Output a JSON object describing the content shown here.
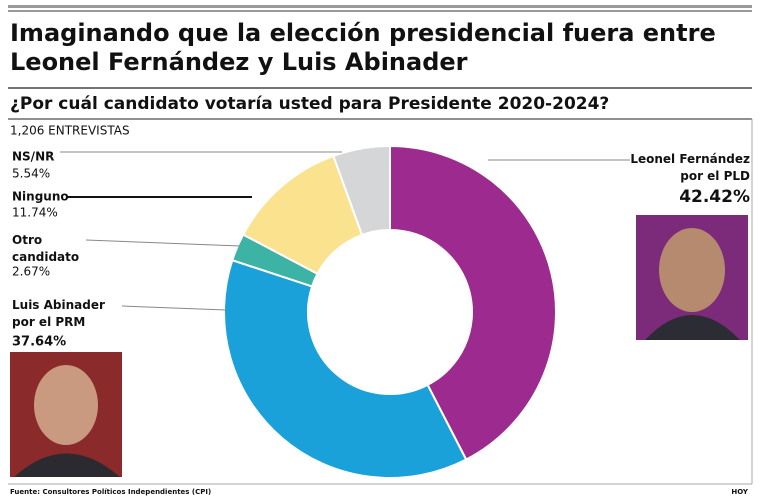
{
  "chart_data": {
    "type": "donut",
    "title": "Imaginando que la elección presidencial fuera entre\nLeonel Fernández y Luis Abinader",
    "subtitle": "¿Por cuál candidato votaría usted para Presidente 2020-2024?",
    "note": "1,206 ENTREVISTAS",
    "categories": [
      "Leonel Fernández\npor el PLD",
      "Luis Abinader\npor el PRM",
      "Otro\ncandidato",
      "Ninguno",
      "NS/NR"
    ],
    "values": [
      42.42,
      37.64,
      2.67,
      11.74,
      5.54
    ],
    "value_labels": [
      "42.42%",
      "37.64%",
      "2.67%",
      "11.74%",
      "5.54%"
    ],
    "colors": [
      "#9c2a8f",
      "#1ba1d9",
      "#3db3a6",
      "#fbe28e",
      "#d5d6d8"
    ],
    "source": "Fuente: Consultores Políticos Independientes (CPI)",
    "credit": "HOY"
  }
}
